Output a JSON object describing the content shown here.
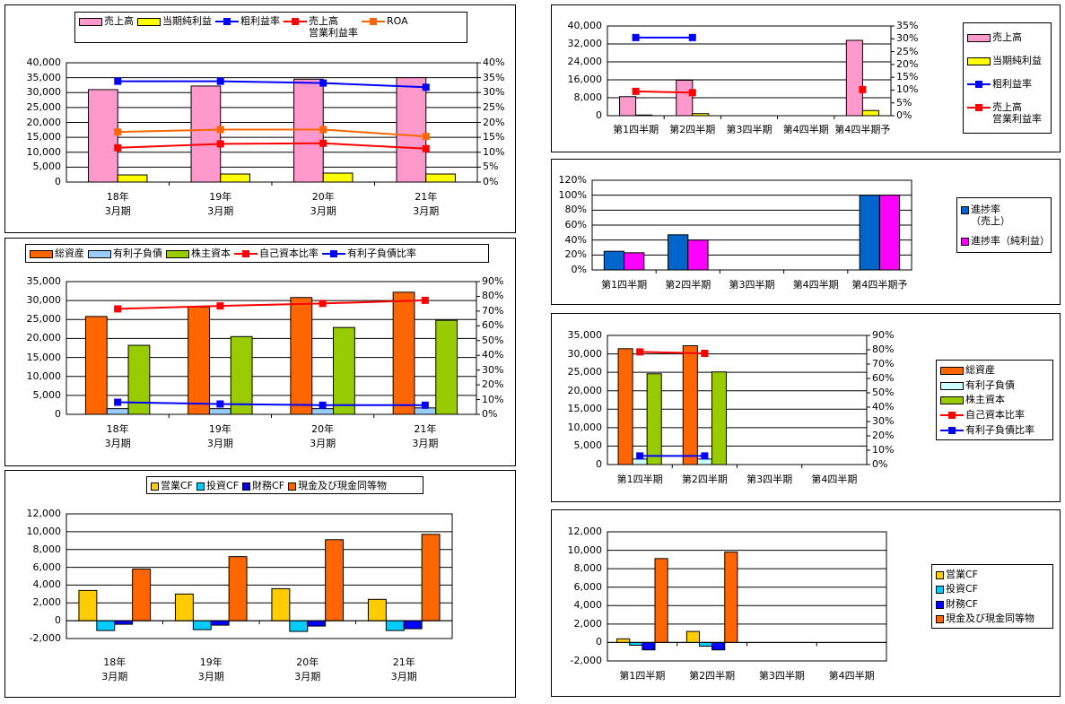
{
  "chart_data": [
    {
      "type": "bar",
      "categories": [
        "18年\n3月期",
        "19年\n3月期",
        "20年\n3月期",
        "21年\n3月期"
      ],
      "ylim": [
        0,
        40000
      ],
      "yticks": [
        "0",
        "5,000",
        "10,000",
        "15,000",
        "20,000",
        "25,000",
        "30,000",
        "35,000",
        "40,000"
      ],
      "y2lim": [
        0,
        40
      ],
      "y2ticks": [
        "0%",
        "5%",
        "10%",
        "15%",
        "20%",
        "25%",
        "30%",
        "35%",
        "40%"
      ],
      "legend": "top",
      "series": [
        {
          "name": "売上高",
          "kind": "bar",
          "color": "#FF99CC",
          "values": [
            31000,
            32200,
            34500,
            35000
          ]
        },
        {
          "name": "当期純利益",
          "kind": "bar",
          "color": "#FFFF00",
          "values": [
            2400,
            2700,
            3000,
            2700
          ]
        },
        {
          "name": "粗利益率",
          "kind": "line",
          "axis": "y2",
          "color": "#0000FF",
          "values": [
            33.8,
            33.8,
            33.2,
            31.8
          ]
        },
        {
          "name": "売上高\n営業利益率",
          "kind": "line",
          "axis": "y2",
          "color": "#FF0000",
          "values": [
            11.5,
            12.8,
            13.0,
            11.2
          ]
        },
        {
          "name": "ROA",
          "kind": "line",
          "axis": "y2",
          "color": "#FF6600",
          "values": [
            16.8,
            17.6,
            17.6,
            15.3
          ]
        }
      ]
    },
    {
      "type": "bar",
      "categories": [
        "18年\n3月期",
        "19年\n3月期",
        "20年\n3月期",
        "21年\n3月期"
      ],
      "ylim": [
        0,
        35000
      ],
      "yticks": [
        "0",
        "5,000",
        "10,000",
        "15,000",
        "20,000",
        "25,000",
        "30,000",
        "35,000"
      ],
      "y2lim": [
        0,
        90
      ],
      "y2ticks": [
        "0%",
        "10%",
        "20%",
        "30%",
        "40%",
        "50%",
        "60%",
        "70%",
        "80%",
        "90%"
      ],
      "legend": "top",
      "series": [
        {
          "name": "総資産",
          "kind": "bar",
          "color": "#FF6600",
          "values": [
            25800,
            28300,
            30800,
            32200
          ]
        },
        {
          "name": "有利子負債",
          "kind": "bar",
          "color": "#99CCFF",
          "values": [
            1500,
            1500,
            1500,
            1700
          ]
        },
        {
          "name": "株主資本",
          "kind": "bar",
          "color": "#99CC00",
          "values": [
            18200,
            20500,
            22900,
            24800
          ]
        },
        {
          "name": "自己資本比率",
          "kind": "line",
          "axis": "y2",
          "color": "#FF0000",
          "values": [
            71.5,
            73.5,
            75.2,
            77.3
          ]
        },
        {
          "name": "有利子負債比率",
          "kind": "line",
          "axis": "y2",
          "color": "#0000FF",
          "values": [
            8.2,
            7.0,
            6.2,
            6.2
          ]
        }
      ]
    },
    {
      "type": "bar",
      "categories": [
        "18年\n3月期",
        "19年\n3月期",
        "20年\n3月期",
        "21年\n3月期"
      ],
      "ylim": [
        -2000,
        12000
      ],
      "yticks": [
        "-2,000",
        "0",
        "2,000",
        "4,000",
        "6,000",
        "8,000",
        "10,000",
        "12,000"
      ],
      "legend": "top",
      "series": [
        {
          "name": "営業CF",
          "kind": "bar",
          "color": "#FFCC00",
          "values": [
            3400,
            3000,
            3600,
            2400
          ]
        },
        {
          "name": "投資CF",
          "kind": "bar",
          "color": "#00CCFF",
          "values": [
            -1100,
            -1000,
            -1200,
            -1100
          ]
        },
        {
          "name": "財務CF",
          "kind": "bar",
          "color": "#0000FF",
          "values": [
            -400,
            -500,
            -600,
            -900
          ]
        },
        {
          "name": "現金及び現金同等物",
          "kind": "bar",
          "color": "#FF6600",
          "values": [
            5800,
            7200,
            9100,
            9700
          ]
        }
      ]
    },
    {
      "type": "bar",
      "categories": [
        "第1四半期",
        "第2四半期",
        "第3四半期",
        "第4四半期",
        "第4四半期予"
      ],
      "ylim": [
        0,
        40000
      ],
      "yticks": [
        "0",
        "8,000",
        "16,000",
        "24,000",
        "32,000",
        "40,000"
      ],
      "y2lim": [
        0,
        35
      ],
      "y2ticks": [
        "0%",
        "5%",
        "10%",
        "15%",
        "20%",
        "25%",
        "30%",
        "35%"
      ],
      "legend": "right",
      "series": [
        {
          "name": "売上高",
          "kind": "bar",
          "color": "#FF99CC",
          "values": [
            8500,
            15800,
            null,
            null,
            33600
          ]
        },
        {
          "name": "当期純利益",
          "kind": "bar",
          "color": "#FFFF00",
          "values": [
            300,
            900,
            null,
            null,
            2300
          ]
        },
        {
          "name": "粗利益率",
          "kind": "line",
          "axis": "y2",
          "color": "#0000FF",
          "values": [
            30.5,
            30.5,
            null,
            null,
            null
          ]
        },
        {
          "name": "売上高\n営業利益率",
          "kind": "line",
          "axis": "y2",
          "color": "#FF0000",
          "values": [
            9.5,
            9.0,
            null,
            null,
            10.2
          ]
        }
      ]
    },
    {
      "type": "bar",
      "categories": [
        "第1四半期",
        "第2四半期",
        "第3四半期",
        "第4四半期",
        "第4四半期予"
      ],
      "ylim": [
        0,
        120
      ],
      "yticks": [
        "0%",
        "20%",
        "40%",
        "60%",
        "80%",
        "100%",
        "120%"
      ],
      "legend": "right",
      "series": [
        {
          "name": "進捗率\n（売上）",
          "kind": "bar",
          "color": "#0066CC",
          "values": [
            25,
            47,
            null,
            null,
            100
          ]
        },
        {
          "name": "進捗率（純利益）",
          "kind": "bar",
          "color": "#FF00FF",
          "values": [
            23,
            40,
            null,
            null,
            100
          ]
        }
      ]
    },
    {
      "type": "bar",
      "categories": [
        "第1四半期",
        "第2四半期",
        "第3四半期",
        "第4四半期"
      ],
      "ylim": [
        0,
        35000
      ],
      "yticks": [
        "0",
        "5,000",
        "10,000",
        "15,000",
        "20,000",
        "25,000",
        "30,000",
        "35,000"
      ],
      "y2lim": [
        0,
        90
      ],
      "y2ticks": [
        "0%",
        "10%",
        "20%",
        "30%",
        "40%",
        "50%",
        "60%",
        "70%",
        "80%",
        "90%"
      ],
      "legend": "right",
      "series": [
        {
          "name": "総資産",
          "kind": "bar",
          "color": "#FF6600",
          "values": [
            31400,
            32200,
            null,
            null
          ]
        },
        {
          "name": "有利子負債",
          "kind": "bar",
          "color": "#CCFFFF",
          "values": [
            1500,
            1500,
            null,
            null
          ]
        },
        {
          "name": "株主資本",
          "kind": "bar",
          "color": "#99CC00",
          "values": [
            24600,
            25100,
            null,
            null
          ]
        },
        {
          "name": "自己資本比率",
          "kind": "line",
          "axis": "y2",
          "color": "#FF0000",
          "values": [
            78.5,
            77.5,
            null,
            null
          ]
        },
        {
          "name": "有利子負債比率",
          "kind": "line",
          "axis": "y2",
          "color": "#0000FF",
          "values": [
            6.0,
            6.0,
            null,
            null
          ]
        }
      ]
    },
    {
      "type": "bar",
      "categories": [
        "第1四半期",
        "第2四半期",
        "第3四半期",
        "第4四半期"
      ],
      "ylim": [
        -2000,
        12000
      ],
      "yticks": [
        "-2,000",
        "0",
        "2,000",
        "4,000",
        "6,000",
        "8,000",
        "10,000",
        "12,000"
      ],
      "legend": "right",
      "series": [
        {
          "name": "営業CF",
          "kind": "bar",
          "color": "#FFCC00",
          "values": [
            400,
            1200,
            null,
            null
          ]
        },
        {
          "name": "投資CF",
          "kind": "bar",
          "color": "#00CCFF",
          "values": [
            -300,
            -400,
            null,
            null
          ]
        },
        {
          "name": "財務CF",
          "kind": "bar",
          "color": "#0000FF",
          "values": [
            -800,
            -800,
            null,
            null
          ]
        },
        {
          "name": "現金及び現金同等物",
          "kind": "bar",
          "color": "#FF6600",
          "values": [
            9100,
            9800,
            null,
            null
          ]
        }
      ]
    }
  ]
}
